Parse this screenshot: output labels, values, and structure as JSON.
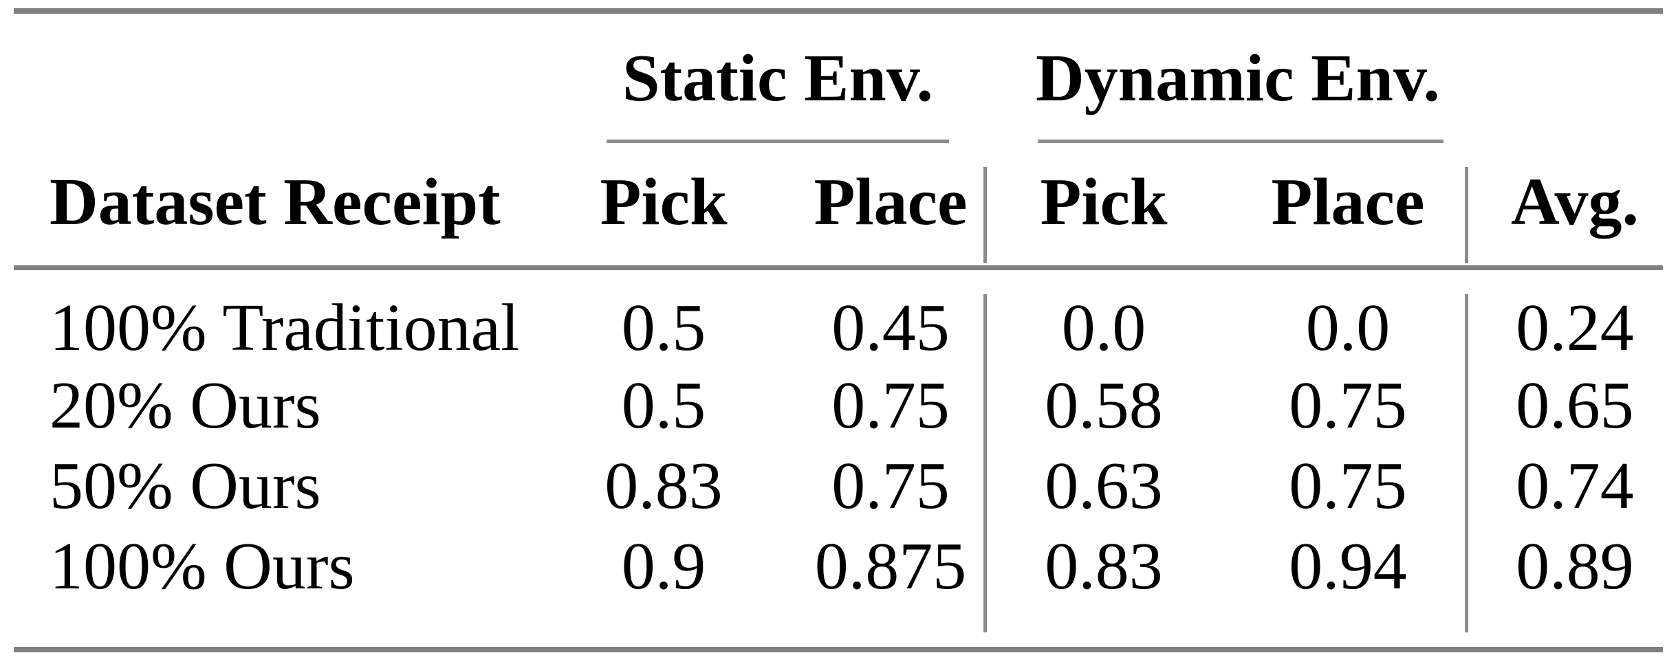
{
  "table": {
    "title_context": "Pick and place success rates table",
    "col_groups": {
      "static": "Static Env.",
      "dynamic": "Dynamic Env."
    },
    "headers": {
      "row_label": "Dataset Receipt",
      "static_pick": "Pick",
      "static_place": "Place",
      "dynamic_pick": "Pick",
      "dynamic_place": "Place",
      "avg": "Avg."
    },
    "rows": [
      {
        "label": "100% Traditional",
        "static_pick": "0.5",
        "static_place": "0.45",
        "dynamic_pick": "0.0",
        "dynamic_place": "0.0",
        "avg": "0.24"
      },
      {
        "label": "20% Ours",
        "static_pick": "0.5",
        "static_place": "0.75",
        "dynamic_pick": "0.58",
        "dynamic_place": "0.75",
        "avg": "0.65"
      },
      {
        "label": "50% Ours",
        "static_pick": "0.83",
        "static_place": "0.75",
        "dynamic_pick": "0.63",
        "dynamic_place": "0.75",
        "avg": "0.74"
      },
      {
        "label": "100% Ours",
        "static_pick": "0.9",
        "static_place": "0.875",
        "dynamic_pick": "0.83",
        "dynamic_place": "0.94",
        "avg": "0.89"
      }
    ],
    "colors": {
      "rule_gray": "#7f7f7f",
      "thin_rule_gray": "#8c8c8c",
      "text": "#000000",
      "background": "#ffffff"
    }
  }
}
